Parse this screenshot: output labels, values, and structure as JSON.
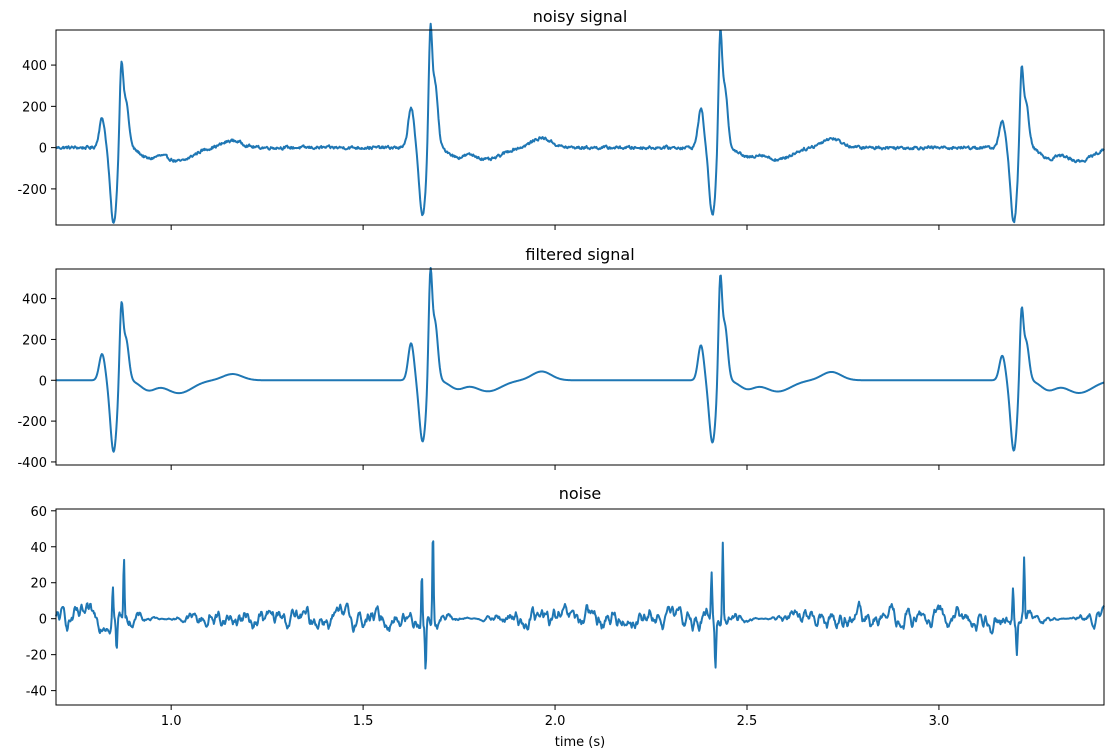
{
  "figure": {
    "xlabel": "time (s)"
  },
  "chart_data": [
    {
      "type": "line",
      "title": "noisy signal",
      "xlabel": "",
      "ylabel": "",
      "xlim": [
        0.7,
        3.43
      ],
      "ylim": [
        -375,
        570
      ],
      "xticks": [
        1.0,
        1.5,
        2.0,
        2.5,
        3.0
      ],
      "xtick_labels_visible": false,
      "yticks": [
        -200,
        0,
        200,
        400
      ],
      "grid": false,
      "color": "#1f77b4",
      "beats": [
        0.87,
        1.675,
        2.43,
        3.215
      ],
      "peaks": [
        375,
        520,
        495,
        350
      ],
      "troughs": [
        -370,
        -325,
        -325,
        -365
      ],
      "noise_amplitude": 8
    },
    {
      "type": "line",
      "title": "filtered signal",
      "xlabel": "",
      "ylabel": "",
      "xlim": [
        0.7,
        3.43
      ],
      "ylim": [
        -415,
        545
      ],
      "xticks": [
        1.0,
        1.5,
        2.0,
        2.5,
        3.0
      ],
      "xtick_labels_visible": false,
      "yticks": [
        -400,
        -200,
        0,
        200,
        400
      ],
      "grid": false,
      "color": "#1f77b4",
      "beats": [
        0.87,
        1.675,
        2.43,
        3.215
      ],
      "peaks": [
        340,
        478,
        452,
        318
      ],
      "troughs": [
        -350,
        -300,
        -305,
        -345
      ],
      "noise_amplitude": 0
    },
    {
      "type": "line",
      "title": "noise",
      "xlabel": "time (s)",
      "ylabel": "",
      "xlim": [
        0.7,
        3.43
      ],
      "ylim": [
        -48,
        61
      ],
      "xticks": [
        1.0,
        1.5,
        2.0,
        2.5,
        3.0
      ],
      "xtick_labels_visible": true,
      "yticks": [
        -40,
        -20,
        0,
        20,
        40,
        60
      ],
      "grid": false,
      "color": "#1f77b4",
      "beats": [
        0.87,
        1.675,
        2.43,
        3.215
      ],
      "spikes": [
        38,
        49,
        45,
        38
      ],
      "dips": [
        -21,
        -28,
        -25,
        -22
      ],
      "noise_amplitude": 7
    }
  ]
}
